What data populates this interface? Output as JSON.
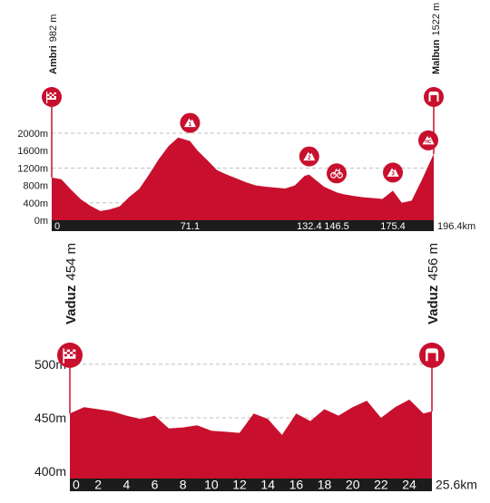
{
  "colors": {
    "profile_red": "#c8102e",
    "axis_bar": "#1c1c1c",
    "grid": "#bfbfbf",
    "text": "#1a1a1a",
    "white": "#ffffff"
  },
  "chart_data": [
    {
      "type": "area",
      "title": "",
      "xlabel": "",
      "ylabel": "",
      "x_unit": "km",
      "y_unit": "m",
      "xlim": [
        0,
        196.4
      ],
      "ylim": [
        0,
        2000
      ],
      "y_ticks": [
        0,
        400,
        800,
        1200,
        1600,
        2000
      ],
      "y_tick_labels": [
        "0m",
        "400m",
        "800m",
        "1200m",
        "1600m",
        "2000m"
      ],
      "x_tick_labels": [
        "0",
        "71.1",
        "132.4",
        "146.5",
        "175.4",
        "196.4km"
      ],
      "x_tick_values": [
        0,
        71.1,
        132.4,
        146.5,
        175.4,
        196.4
      ],
      "gridlines": [
        400,
        1200,
        2000
      ],
      "series": [
        {
          "x": [
            0,
            5,
            10,
            15,
            20,
            25,
            30,
            35,
            40,
            45,
            50,
            55,
            60,
            65,
            71.1,
            75,
            80,
            85,
            90,
            95,
            100,
            105,
            110,
            115,
            120,
            125,
            130,
            132.4,
            135,
            140,
            146.5,
            150,
            155,
            160,
            165,
            170,
            175.4,
            180,
            185,
            190,
            196.4
          ],
          "y": [
            982,
            940,
            700,
            480,
            330,
            210,
            250,
            320,
            540,
            720,
            1050,
            1400,
            1700,
            1900,
            1820,
            1600,
            1380,
            1150,
            1050,
            960,
            870,
            800,
            770,
            750,
            730,
            800,
            1020,
            1050,
            950,
            770,
            640,
            600,
            560,
            530,
            510,
            490,
            680,
            400,
            450,
            900,
            1522
          ]
        }
      ],
      "markers": [
        {
          "icon": "start-flag-icon",
          "place": "Ambri",
          "altitude": "982 m",
          "km": 0
        },
        {
          "icon": "finish-gate-icon",
          "place": "Malbun",
          "altitude": "1522 m",
          "km": 196.4
        },
        {
          "icon": "climb-icon",
          "category": "1",
          "km": 71.1
        },
        {
          "icon": "climb-icon",
          "category": "2",
          "km": 132.4
        },
        {
          "icon": "sprint-icon",
          "km": 146.5
        },
        {
          "icon": "climb-icon",
          "category": "3",
          "km": 175.4
        },
        {
          "icon": "summit-finish-icon",
          "category": "HC",
          "km": 196.4
        }
      ]
    },
    {
      "type": "area",
      "title": "",
      "xlabel": "",
      "ylabel": "",
      "x_unit": "km",
      "y_unit": "m",
      "xlim": [
        0,
        25.6
      ],
      "ylim": [
        390,
        510
      ],
      "y_ticks": [
        400,
        450,
        500
      ],
      "y_tick_labels": [
        "400m",
        "450m",
        "500m"
      ],
      "x_tick_labels": [
        "0",
        "2",
        "4",
        "6",
        "8",
        "10",
        "12",
        "14",
        "16",
        "18",
        "20",
        "22",
        "24",
        "25.6km"
      ],
      "x_tick_values": [
        0,
        2,
        4,
        6,
        8,
        10,
        12,
        14,
        16,
        18,
        20,
        22,
        24,
        25.6
      ],
      "gridlines": [
        450,
        500
      ],
      "series": [
        {
          "x": [
            0,
            1,
            2,
            3,
            4,
            5,
            6,
            7,
            8,
            9,
            10,
            11,
            12,
            13,
            14,
            15,
            16,
            17,
            18,
            19,
            20,
            21,
            22,
            23,
            24,
            25,
            25.6
          ],
          "y": [
            454,
            460,
            458,
            456,
            452,
            449,
            452,
            440,
            441,
            443,
            438,
            437,
            436,
            454,
            449,
            434,
            454,
            447,
            458,
            452,
            460,
            466,
            450,
            460,
            467,
            454,
            456
          ]
        }
      ],
      "markers": [
        {
          "icon": "start-flag-icon",
          "place": "Vaduz",
          "altitude": "454 m",
          "km": 0
        },
        {
          "icon": "finish-gate-icon",
          "place": "Vaduz",
          "altitude": "456 m",
          "km": 25.6
        }
      ]
    }
  ]
}
